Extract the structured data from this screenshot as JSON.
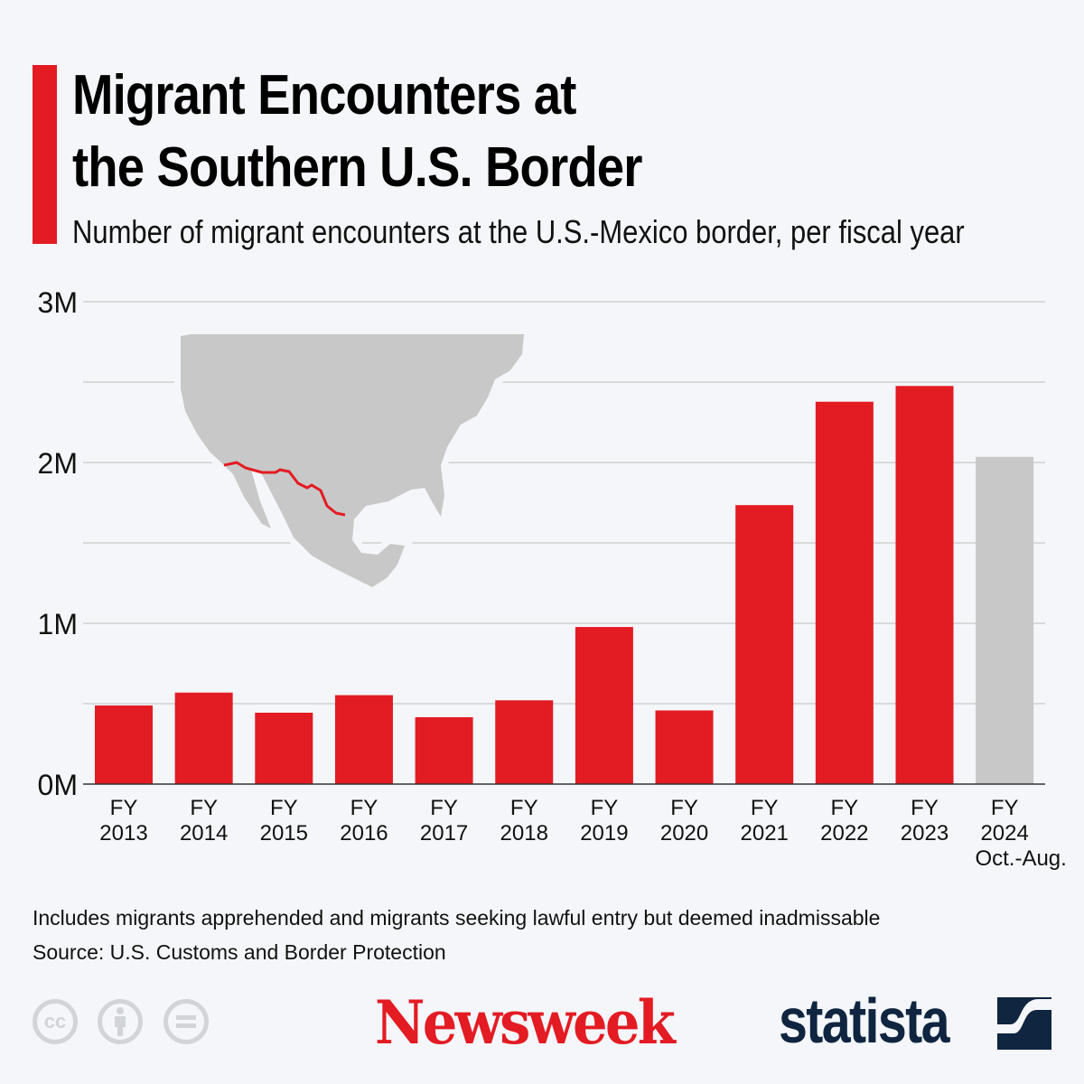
{
  "header": {
    "title_line1": "Migrant Encounters at",
    "title_line2": "the Southern U.S. Border",
    "subtitle": "Number of migrant encounters at the U.S.-Mexico border, per fiscal year"
  },
  "chart_data": {
    "type": "bar",
    "title": "Migrant Encounters at the Southern U.S. Border",
    "subtitle": "Number of migrant encounters at the U.S.-Mexico border, per fiscal year",
    "categories": [
      {
        "line1": "FY",
        "line2": "2013",
        "line3": ""
      },
      {
        "line1": "FY",
        "line2": "2014",
        "line3": ""
      },
      {
        "line1": "FY",
        "line2": "2015",
        "line3": ""
      },
      {
        "line1": "FY",
        "line2": "2016",
        "line3": ""
      },
      {
        "line1": "FY",
        "line2": "2017",
        "line3": ""
      },
      {
        "line1": "FY",
        "line2": "2018",
        "line3": ""
      },
      {
        "line1": "FY",
        "line2": "2019",
        "line3": ""
      },
      {
        "line1": "FY",
        "line2": "2020",
        "line3": ""
      },
      {
        "line1": "FY",
        "line2": "2021",
        "line3": ""
      },
      {
        "line1": "FY",
        "line2": "2022",
        "line3": ""
      },
      {
        "line1": "FY",
        "line2": "2023",
        "line3": ""
      },
      {
        "line1": "FY",
        "line2": "2024",
        "line3": "Oct.-Aug."
      }
    ],
    "values": [
      489000,
      569000,
      444000,
      553000,
      416000,
      521000,
      977000,
      458000,
      1735000,
      2378000,
      2476000,
      2035000
    ],
    "bar_colors": [
      "#e31b23",
      "#e31b23",
      "#e31b23",
      "#e31b23",
      "#e31b23",
      "#e31b23",
      "#e31b23",
      "#e31b23",
      "#e31b23",
      "#e31b23",
      "#e31b23",
      "#c8c8c8"
    ],
    "ylim": [
      0,
      3000000
    ],
    "y_ticks": [
      {
        "value": 0,
        "label": "0M"
      },
      {
        "value": 1000000,
        "label": "1M"
      },
      {
        "value": 2000000,
        "label": "2M"
      },
      {
        "value": 3000000,
        "label": "3M"
      }
    ],
    "minor_gridlines": [
      500000,
      1500000,
      2500000
    ],
    "grid": true,
    "xlabel": "",
    "ylabel": ""
  },
  "map": {
    "icon": "north-america-map-with-us-mexico-border-highlighted",
    "land_color": "#c8c8c8",
    "border_color": "#e31b23"
  },
  "footer": {
    "note": "Includes migrants apprehended and migrants seeking lawful entry but deemed inadmissable",
    "source": "Source: U.S. Customs and Border Protection",
    "cc_label": "cc",
    "newsweek_logo": "Newsweek",
    "statista_logo": "statista"
  },
  "colors": {
    "accent": "#e31b23",
    "projection": "#c8c8c8",
    "background": "#f4f6f9",
    "statista": "#0f2540"
  }
}
